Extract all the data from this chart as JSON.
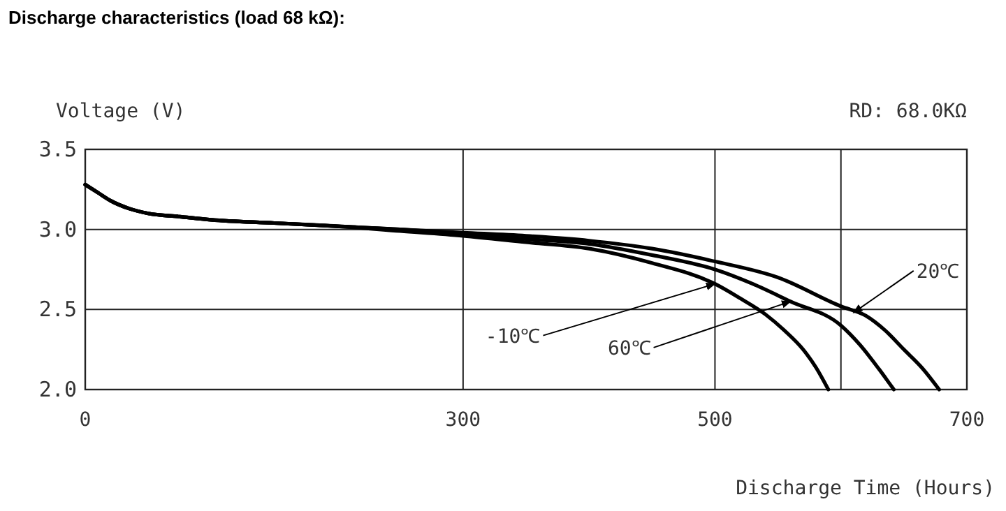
{
  "chart_data": {
    "type": "line",
    "title": "Discharge characteristics (load 68 kΩ):",
    "xlabel": "Discharge Time (Hours)",
    "ylabel": "Voltage (V)",
    "series": [
      {
        "color": "#000000",
        "x": [
          0,
          10,
          20,
          35,
          50,
          75,
          100,
          150,
          200,
          250,
          300,
          350,
          400,
          450,
          500,
          520,
          540,
          555,
          570,
          580,
          590
        ],
        "values": [
          3.28,
          3.23,
          3.18,
          3.13,
          3.1,
          3.08,
          3.06,
          3.04,
          3.02,
          2.99,
          2.96,
          2.92,
          2.88,
          2.79,
          2.66,
          2.57,
          2.47,
          2.37,
          2.25,
          2.14,
          2.0
        ]
      },
      {
        "color": "#000000",
        "x": [
          0,
          10,
          20,
          35,
          50,
          75,
          100,
          150,
          200,
          250,
          300,
          350,
          400,
          450,
          500,
          530,
          560,
          600,
          615,
          630,
          642
        ],
        "values": [
          3.28,
          3.23,
          3.18,
          3.13,
          3.1,
          3.08,
          3.06,
          3.04,
          3.02,
          3.0,
          2.97,
          2.94,
          2.91,
          2.84,
          2.75,
          2.66,
          2.55,
          2.4,
          2.28,
          2.13,
          2.0
        ]
      },
      {
        "color": "#000000",
        "x": [
          0,
          10,
          20,
          35,
          50,
          75,
          100,
          150,
          200,
          250,
          300,
          350,
          400,
          450,
          500,
          550,
          600,
          620,
          635,
          650,
          665,
          678
        ],
        "values": [
          3.28,
          3.23,
          3.18,
          3.13,
          3.1,
          3.08,
          3.06,
          3.04,
          3.02,
          3.0,
          2.98,
          2.96,
          2.93,
          2.88,
          2.8,
          2.7,
          2.52,
          2.46,
          2.37,
          2.25,
          2.13,
          2.0
        ]
      }
    ],
    "xlim": [
      0,
      700
    ],
    "xticks": [
      0,
      300,
      500,
      {
        "value": 600,
        "label": null
      },
      700
    ],
    "ylim": [
      2.0,
      3.5
    ],
    "yticks": [
      {
        "value": 2.0,
        "label": "2.0"
      },
      {
        "value": 2.5,
        "label": "2.5"
      },
      {
        "value": 3.0,
        "label": "3.0"
      },
      {
        "value": 3.5,
        "label": "3.5"
      }
    ],
    "grid": true,
    "line_style": "solid",
    "marker": "none",
    "annotations": [
      {
        "text": "-10℃",
        "x": 500,
        "y": 2.66
      },
      {
        "text": "60℃",
        "x": 560,
        "y": 2.55
      },
      {
        "text": "20℃",
        "x": 610,
        "y": 2.48
      },
      "RD: 68.0KΩ"
    ]
  }
}
